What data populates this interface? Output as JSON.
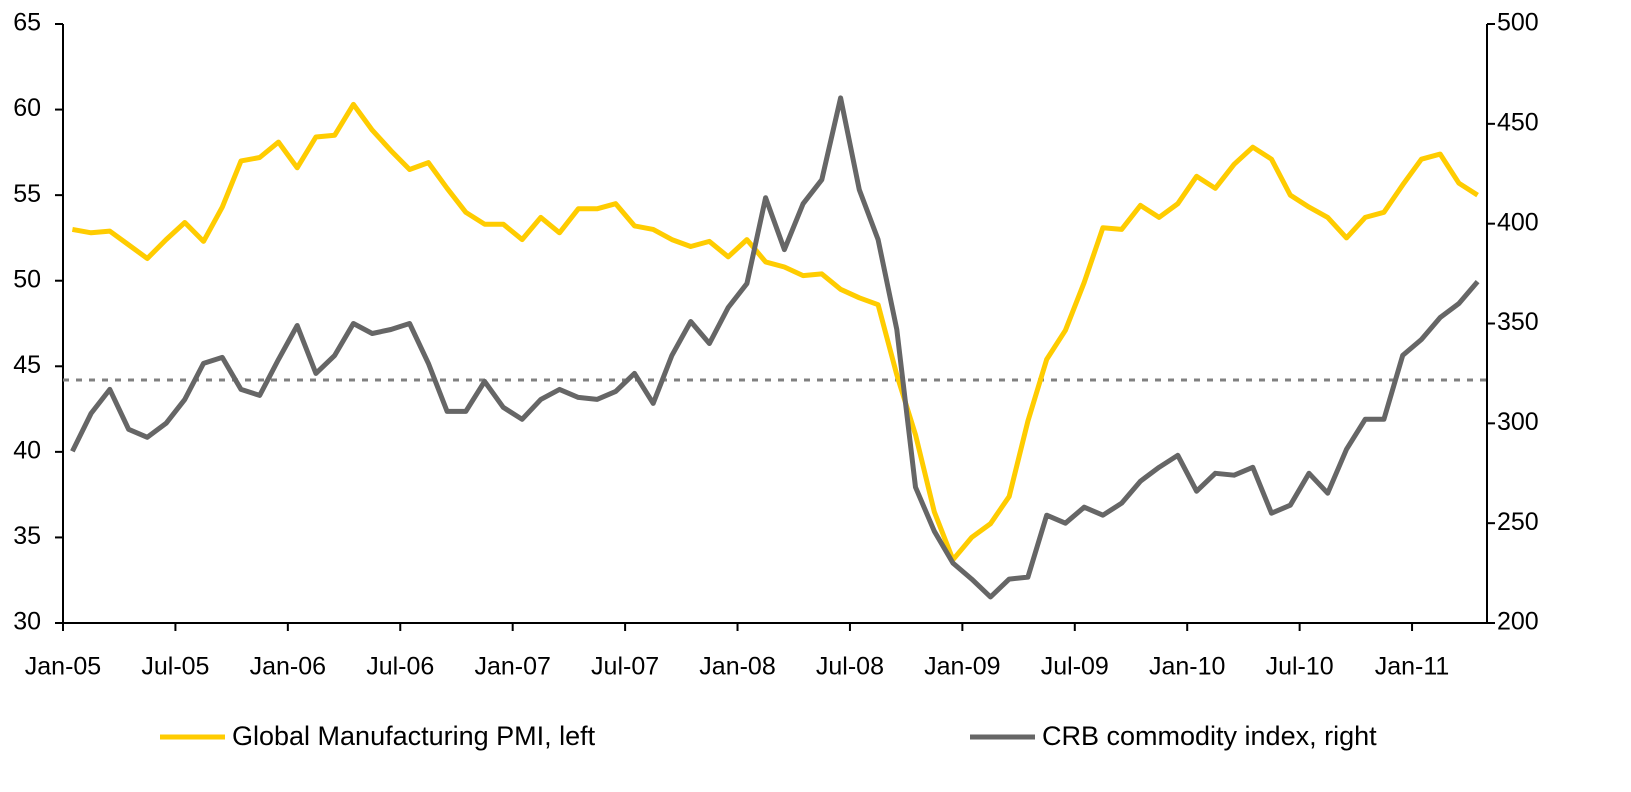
{
  "chart_data": {
    "type": "line",
    "categories": [
      "Jan-05",
      null,
      null,
      null,
      null,
      null,
      "Jul-05",
      null,
      null,
      null,
      null,
      null,
      "Jan-06",
      null,
      null,
      null,
      null,
      null,
      "Jul-06",
      null,
      null,
      null,
      null,
      null,
      "Jan-07",
      null,
      null,
      null,
      null,
      null,
      "Jul-07",
      null,
      null,
      null,
      null,
      null,
      "Jan-08",
      null,
      null,
      null,
      null,
      null,
      "Jul-08",
      null,
      null,
      null,
      null,
      null,
      "Jan-09",
      null,
      null,
      null,
      null,
      null,
      "Jul-09",
      null,
      null,
      null,
      null,
      null,
      "Jan-10",
      null,
      null,
      null,
      null,
      null,
      "Jul-10",
      null,
      null,
      null,
      null,
      null,
      "Jan-11",
      null,
      null,
      null
    ],
    "series": [
      {
        "name": "Global Manufacturing PMI, left",
        "color": "#FFCC00",
        "axis": "y",
        "values": [
          53.0,
          52.8,
          52.9,
          52.1,
          51.3,
          52.4,
          53.4,
          52.3,
          54.3,
          57.0,
          57.2,
          58.1,
          56.6,
          58.4,
          58.5,
          60.3,
          58.8,
          57.6,
          56.5,
          56.9,
          55.4,
          54.0,
          53.3,
          53.3,
          52.4,
          53.7,
          52.8,
          54.2,
          54.2,
          54.5,
          53.2,
          53.0,
          52.4,
          52.0,
          52.3,
          51.4,
          52.4,
          51.1,
          50.8,
          50.3,
          50.4,
          49.5,
          49.0,
          48.6,
          44.5,
          41.0,
          36.5,
          33.7,
          35.0,
          35.8,
          37.4,
          41.8,
          45.4,
          47.1,
          49.9,
          53.1,
          53.0,
          54.4,
          53.7,
          54.5,
          56.1,
          55.4,
          56.8,
          57.8,
          57.1,
          55.0,
          54.3,
          53.7,
          52.5,
          53.7,
          54.0,
          55.6,
          57.1,
          57.4,
          55.7,
          55.0
        ]
      },
      {
        "name": "CRB commodity index, right",
        "color": "#666666",
        "axis": "y2",
        "values": [
          286,
          305,
          317,
          297,
          293,
          300,
          312,
          330,
          333,
          317,
          314,
          332,
          349,
          325,
          334,
          350,
          345,
          347,
          350,
          330,
          306,
          306,
          321,
          308,
          302,
          312,
          317,
          313,
          312,
          316,
          325,
          310,
          334,
          351,
          340,
          358,
          370,
          413,
          387,
          410,
          422,
          463,
          417,
          392,
          347,
          268,
          246,
          230,
          222,
          213,
          222,
          223,
          254,
          250,
          258,
          254,
          260,
          271,
          278,
          284,
          266,
          275,
          274,
          278,
          255,
          259,
          275,
          265,
          287,
          302,
          302,
          334,
          342,
          353,
          360,
          371
        ]
      }
    ],
    "ylim": [
      30,
      65
    ],
    "yticks": [
      30,
      35,
      40,
      45,
      50,
      55,
      60,
      65
    ],
    "y2lim": [
      200,
      500
    ],
    "y2ticks": [
      200,
      250,
      300,
      350,
      400,
      450,
      500
    ],
    "reference_line": {
      "value": 44.2,
      "axis": "y",
      "color": "#808080",
      "dashed": true
    },
    "legend": "bottom"
  }
}
